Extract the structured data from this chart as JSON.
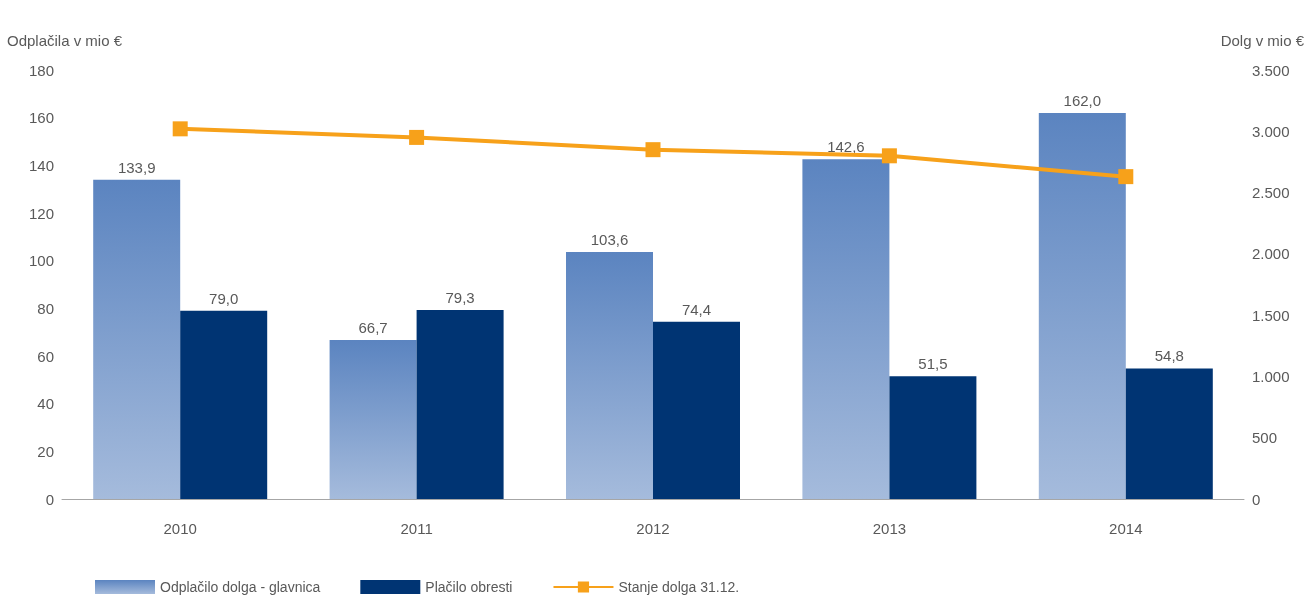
{
  "chart_data": {
    "type": "bar",
    "categories": [
      "2010",
      "2011",
      "2012",
      "2013",
      "2014"
    ],
    "ylabel": "Odplačila v mio €",
    "y2label": "Dolg v mio €",
    "series": [
      {
        "name": "Odplačilo dolga - glavnica",
        "color": "#5b84c0",
        "values": [
          133.9,
          66.7,
          103.6,
          142.6,
          162.0
        ],
        "value_labels": [
          "133,9",
          "66,7",
          "103,6",
          "142,6",
          "162,0"
        ]
      },
      {
        "name": "Plačilo obresti",
        "color": "#003473",
        "values": [
          79.0,
          79.3,
          74.4,
          51.5,
          54.8
        ],
        "value_labels": [
          "79,0",
          "79,3",
          "74,4",
          "51,5",
          "54,8"
        ]
      },
      {
        "name": "Stanje dolga 31.12.",
        "type": "line",
        "axis": "y2",
        "color": "#f7a11a",
        "marker": "square",
        "values": [
          3020,
          2950,
          2850,
          2800,
          2630
        ]
      }
    ],
    "ylim": [
      0,
      180
    ],
    "yticks": [
      0,
      20,
      40,
      60,
      80,
      100,
      120,
      140,
      160,
      180
    ],
    "y2lim": [
      0,
      3500
    ],
    "y2ticks": [
      0,
      500,
      {
        "value": 1000,
        "label": "1.000"
      },
      {
        "value": 1500,
        "label": "1.500"
      },
      {
        "value": 2000,
        "label": "2.000"
      },
      {
        "value": 2500,
        "label": "2.500"
      },
      {
        "value": 3000,
        "label": "3.000"
      },
      {
        "value": 3500,
        "label": "3.500"
      }
    ],
    "grid": false,
    "legend": "bottom left"
  }
}
